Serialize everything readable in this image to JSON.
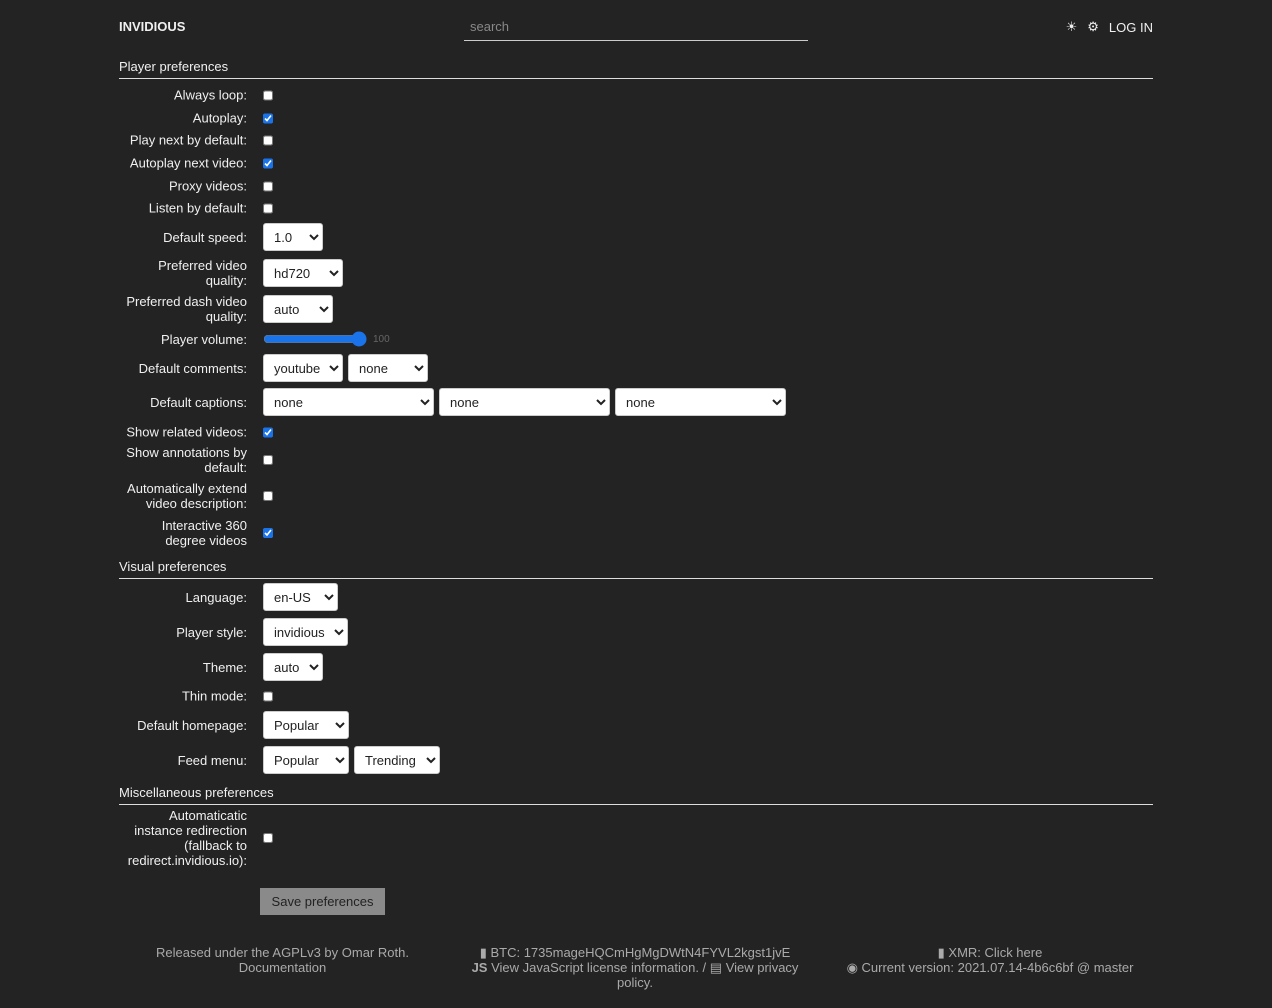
{
  "header": {
    "logo": "INVIDIOUS",
    "search_placeholder": "search",
    "theme_icon": "☀",
    "settings_icon": "⚙",
    "login": "LOG IN"
  },
  "player": {
    "title": "Player preferences",
    "always_loop": "Always loop:",
    "autoplay": "Autoplay:",
    "play_next": "Play next by default:",
    "autoplay_next": "Autoplay next video:",
    "proxy": "Proxy videos:",
    "listen": "Listen by default:",
    "speed": "Default speed:",
    "speed_value": "1.0",
    "quality": "Preferred video quality:",
    "quality_value": "hd720",
    "dash": "Preferred dash video quality:",
    "dash_value": "auto",
    "volume": "Player volume:",
    "volume_value": "100",
    "comments": "Default comments:",
    "comments_1": "youtube",
    "comments_2": "none",
    "captions": "Default captions:",
    "captions_1": "none",
    "captions_2": "none",
    "captions_3": "none",
    "related": "Show related videos:",
    "annotations": "Show annotations by default:",
    "extend": "Automatically extend video description:",
    "vr": "Interactive 360 degree videos"
  },
  "checks": {
    "always_loop": false,
    "autoplay": true,
    "play_next": false,
    "autoplay_next": true,
    "proxy": false,
    "listen": false,
    "related": true,
    "annotations": false,
    "extend": false,
    "vr": true,
    "thin": false,
    "redirect": false
  },
  "visual": {
    "title": "Visual preferences",
    "language": "Language:",
    "language_value": "en-US",
    "style": "Player style:",
    "style_value": "invidious",
    "theme": "Theme:",
    "theme_value": "auto",
    "thin": "Thin mode:",
    "homepage": "Default homepage:",
    "homepage_value": "Popular",
    "feed": "Feed menu:",
    "feed_1": "Popular",
    "feed_2": "Trending"
  },
  "misc": {
    "title": "Miscellaneous preferences",
    "redirect": "Automaticatic instance redirection (fallback to redirect.invidious.io):"
  },
  "save": "Save preferences",
  "footer": {
    "license": "Released under the AGPLv3 by Omar Roth.",
    "docs": "Documentation",
    "btc": "BTC: 1735mageHQCmHgMgDWtN4FYVL2kgst1jvE",
    "js": "View JavaScript license information.",
    "sep": " / ",
    "privacy": "View privacy policy.",
    "xmr": "XMR: Click here",
    "version": "Current version: 2021.07.14-4b6c6bf @ master"
  }
}
